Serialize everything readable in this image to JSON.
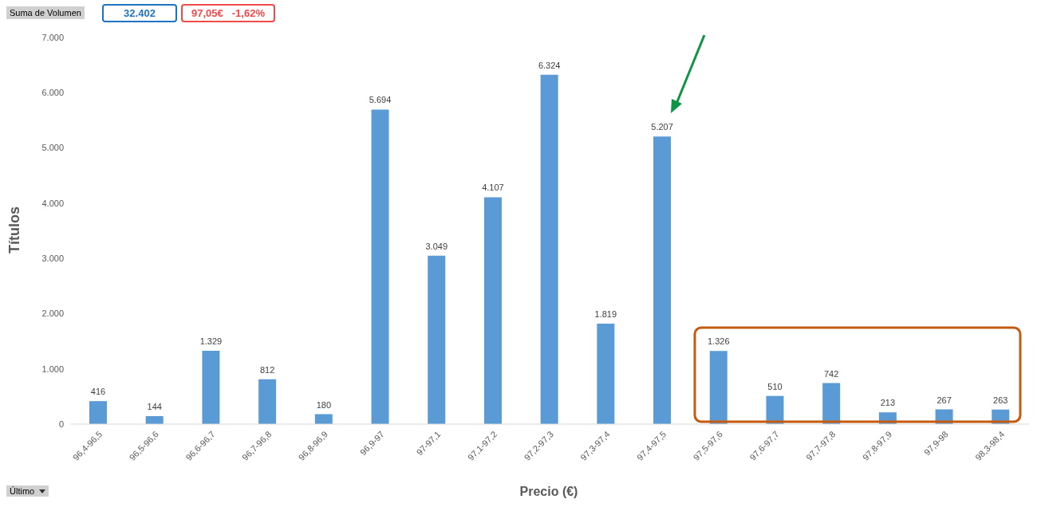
{
  "chart_data": {
    "type": "bar",
    "xlabel": "Precio (€)",
    "ylabel": "Títulos",
    "categories": [
      "96,4-96,5",
      "96,5-96,6",
      "96,6-96,7",
      "96,7-96,8",
      "96,8-96,9",
      "96,9-97",
      "97-97,1",
      "97,1-97,2",
      "97,2-97,3",
      "97,3-97,4",
      "97,4-97,5",
      "97,5-97,6",
      "97,6-97,7",
      "97,7-97,8",
      "97,8-97,9",
      "97,9-98",
      "98,3-98,4"
    ],
    "values": [
      416,
      144,
      1329,
      812,
      180,
      5694,
      3049,
      4107,
      6324,
      1819,
      5207,
      1326,
      510,
      742,
      213,
      267,
      263
    ],
    "value_labels": [
      "416",
      "144",
      "1.329",
      "812",
      "180",
      "5.694",
      "3.049",
      "4.107",
      "6.324",
      "1.819",
      "5.207",
      "1.326",
      "510",
      "742",
      "213",
      "267",
      "263"
    ],
    "color": "#5b9bd5",
    "ylim": [
      0,
      7000
    ],
    "yticks": [
      0,
      {
        "value": 1000,
        "label": "1.000"
      },
      {
        "value": 2000,
        "label": "2.000"
      },
      {
        "value": 3000,
        "label": "3.000"
      },
      {
        "value": 4000,
        "label": "4.000"
      },
      {
        "value": 5000,
        "label": "5.000"
      },
      {
        "value": 6000,
        "label": "6.000"
      },
      {
        "value": 7000,
        "label": "7.000"
      }
    ],
    "grid": false,
    "legend": false,
    "annotations": [
      "Suma de Volumen",
      "32.402",
      "97,05€",
      "-1,62%",
      "Último"
    ]
  }
}
